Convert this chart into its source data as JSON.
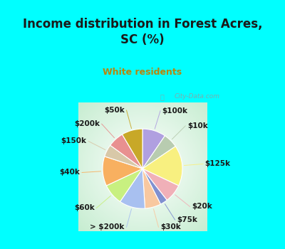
{
  "title": "Income distribution in Forest Acres,\nSC (%)",
  "subtitle": "White residents",
  "title_color": "#1a1a1a",
  "subtitle_color": "#b8860b",
  "background_cyan": "#00ffff",
  "background_chart_color": "#d8ede0",
  "labels": [
    "$100k",
    "$10k",
    "$125k",
    "$20k",
    "$75k",
    "$30k",
    "> $200k",
    "$60k",
    "$40k",
    "$150k",
    "$200k",
    "$50k"
  ],
  "values": [
    9.5,
    6.0,
    16.5,
    7.5,
    3.0,
    6.5,
    10.5,
    8.5,
    12.0,
    5.0,
    6.5,
    8.5
  ],
  "colors": [
    "#b0a0e0",
    "#b8ccb0",
    "#f8f080",
    "#f0b0b8",
    "#8090d0",
    "#f8c8a0",
    "#a8c0f0",
    "#c8f080",
    "#f8b060",
    "#d8c8a8",
    "#e89090",
    "#c8a828"
  ],
  "wedge_edge_color": "#ffffff",
  "label_fontsize": 7.5,
  "label_color": "#1a1a1a",
  "watermark": "City-Data.com",
  "title_fontsize": 12,
  "subtitle_fontsize": 9
}
